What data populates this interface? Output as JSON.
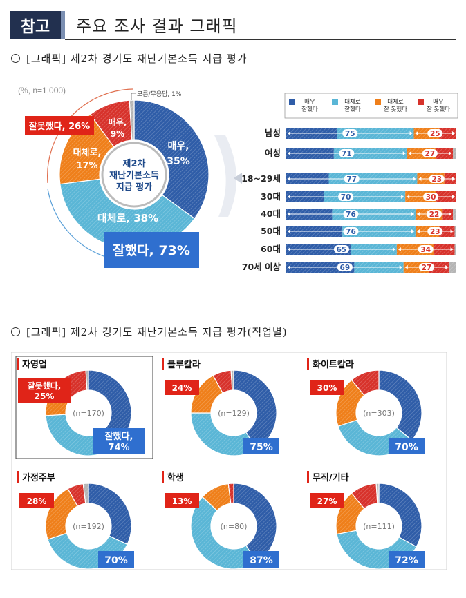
{
  "header": {
    "tag": "참고",
    "title": "주요 조사 결과 그래픽"
  },
  "section1": {
    "title": "[그래픽] 제2차 경기도 재난기본소득 지급 평가"
  },
  "section2": {
    "title": "[그래픽] 제2차 경기도 재난기본소득 지급 평가(직업별)"
  },
  "colors": {
    "very_good": "#2f5da8",
    "somewhat_good": "#5ab6d6",
    "somewhat_bad": "#ef7f1a",
    "very_bad": "#d7322b",
    "unknown": "#b5b5b5",
    "accent_red": "#e02418",
    "accent_blue": "#2f6fcf"
  },
  "main_donut": {
    "note": "(%, n=1,000)",
    "center_text": [
      "제2차",
      "재난기본소득",
      "지급 평가"
    ],
    "unknown_label": "모름/무응답, 1%",
    "good_total_label": "잘했다, 73%",
    "bad_total_label": "잘못했다, 26%",
    "slices": [
      {
        "label": "매우,",
        "value_label": "35%",
        "value": 35
      },
      {
        "label": "대체로, 38%",
        "value_label": "",
        "value": 38
      },
      {
        "label": "대체로,",
        "value_label": "17%",
        "value": 17
      },
      {
        "label": "매우,",
        "value_label": "9%",
        "value": 9
      },
      {
        "label": "",
        "value_label": "",
        "value": 1
      }
    ]
  },
  "chart_data": {
    "type": "bar",
    "orientation": "horizontal-stacked",
    "legend": [
      "매우 잘했다",
      "대체로 잘했다",
      "대체로 잘 못했다",
      "매우 잘 못했다"
    ],
    "legend_lines": [
      [
        "매우",
        "잘했다"
      ],
      [
        "대체로",
        "잘했다"
      ],
      [
        "대체로",
        "잘 못했다"
      ],
      [
        "매우",
        "잘 못했다"
      ]
    ],
    "legend_position": "top",
    "categories": [
      "남성",
      "여성",
      "18~29세",
      "30대",
      "40대",
      "50대",
      "60대",
      "70세 이상"
    ],
    "good_labels": [
      75,
      71,
      77,
      70,
      76,
      76,
      65,
      69
    ],
    "bad_labels": [
      25,
      27,
      23,
      30,
      22,
      23,
      34,
      27
    ],
    "series": [
      {
        "name": "매우 잘했다",
        "values": [
          30,
          28,
          25,
          22,
          27,
          33,
          38,
          40
        ]
      },
      {
        "name": "대체로 잘했다",
        "values": [
          45,
          43,
          52,
          48,
          49,
          43,
          27,
          29
        ]
      },
      {
        "name": "대체로 잘 못했다",
        "values": [
          15,
          17,
          16,
          18,
          16,
          14,
          22,
          15
        ]
      },
      {
        "name": "매우 잘 못했다",
        "values": [
          10,
          10,
          7,
          12,
          6,
          9,
          12,
          12
        ]
      },
      {
        "name": "모름/무응답",
        "values": [
          0,
          2,
          0,
          0,
          2,
          1,
          1,
          4
        ]
      }
    ]
  },
  "occupations": [
    {
      "name": "자영업",
      "n": "(n=170)",
      "good": "잘했다,\n74%",
      "bad": "잘못했다,\n25%",
      "boxed": true,
      "values": [
        38,
        36,
        13,
        12,
        1
      ]
    },
    {
      "name": "블루칼라",
      "n": "(n=129)",
      "good": "75%",
      "bad": "24%",
      "boxed": false,
      "values": [
        41,
        34,
        17,
        7,
        1
      ]
    },
    {
      "name": "화이트칼라",
      "n": "(n=303)",
      "good": "70%",
      "bad": "30%",
      "boxed": false,
      "values": [
        36,
        34,
        19,
        11,
        0
      ]
    },
    {
      "name": "가정주부",
      "n": "(n=192)",
      "good": "70%",
      "bad": "28%",
      "boxed": false,
      "values": [
        32,
        38,
        22,
        6,
        2
      ]
    },
    {
      "name": "학생",
      "n": "(n=80)",
      "good": "87%",
      "bad": "13%",
      "boxed": false,
      "values": [
        41,
        46,
        11,
        2,
        0
      ]
    },
    {
      "name": "무직/기타",
      "n": "(n=111)",
      "good": "72%",
      "bad": "27%",
      "boxed": false,
      "values": [
        33,
        39,
        17,
        10,
        1
      ]
    }
  ]
}
